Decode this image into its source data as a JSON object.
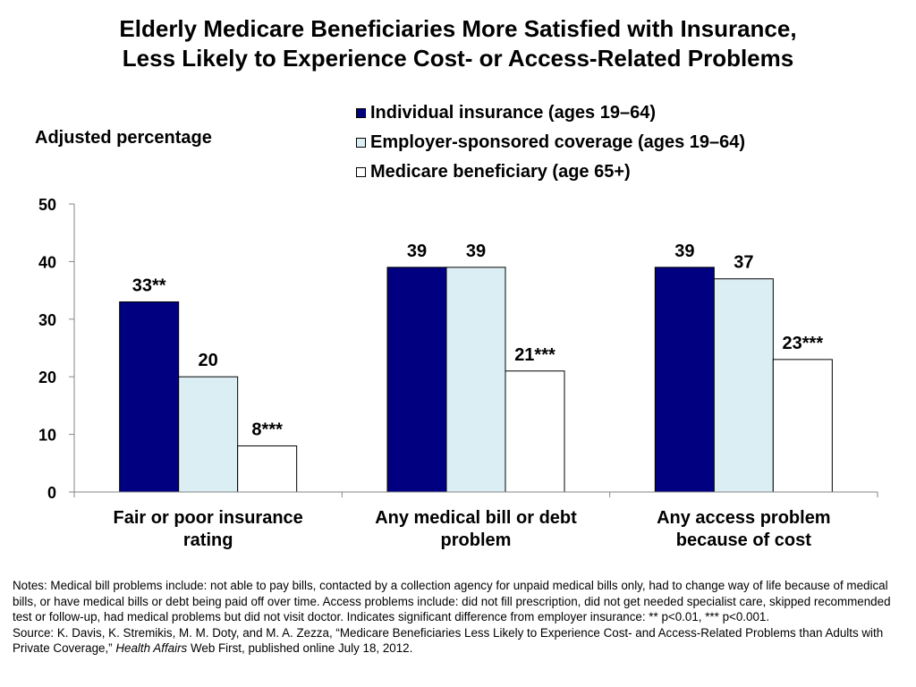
{
  "page": {
    "title_line1": "Elderly Medicare Beneficiaries More Satisfied with Insurance,",
    "title_line2": "Less Likely to Experience Cost- or Access-Related Problems",
    "notes": "Notes: Medical bill problems include: not able to pay bills, contacted by a collection agency for unpaid medical bills only, had to change way of life because of medical bills, or have medical bills or debt being paid off over time. Access problems include: did not fill prescription, did not get needed specialist care, skipped recommended test or follow-up, had medical problems but did not visit doctor. Indicates significant difference from employer insurance: ** p<0.01, *** p<0.001.",
    "source_prefix": "Source: K. Davis, K. Stremikis, M. M. Doty, and M. A. Zezza, “Medicare Beneficiaries Less Likely to Experience Cost- and Access-Related Problems than Adults with Private Coverage,” ",
    "source_journal": "Health Affairs",
    "source_suffix": " Web First, published online July 18, 2012."
  },
  "chart_data": {
    "type": "bar",
    "title": "Elderly Medicare Beneficiaries More Satisfied with Insurance, Less Likely to Experience Cost- or Access-Related Problems",
    "ylabel": "Adjusted percentage",
    "xlabel": "",
    "ylim": [
      0,
      50
    ],
    "yticks": [
      0,
      10,
      20,
      30,
      40,
      50
    ],
    "grid": false,
    "legend_position": "top-right",
    "categories": [
      [
        "Fair or poor insurance",
        "rating"
      ],
      [
        "Any medical bill or debt",
        "problem"
      ],
      [
        "Any access problem",
        "because of cost"
      ]
    ],
    "series": [
      {
        "name": "Individual insurance (ages 19–64)",
        "color": "#000080",
        "values": [
          33,
          39,
          39
        ],
        "labels": [
          "33**",
          "39",
          "39"
        ]
      },
      {
        "name": "Employer-sponsored coverage (ages 19–64)",
        "color": "#dbeef3",
        "values": [
          20,
          39,
          37
        ],
        "labels": [
          "20",
          "39",
          "37"
        ]
      },
      {
        "name": "Medicare beneficiary (age 65+)",
        "color": "#ffffff",
        "values": [
          8,
          21,
          23
        ],
        "labels": [
          "8***",
          "21***",
          "23***"
        ]
      }
    ]
  }
}
